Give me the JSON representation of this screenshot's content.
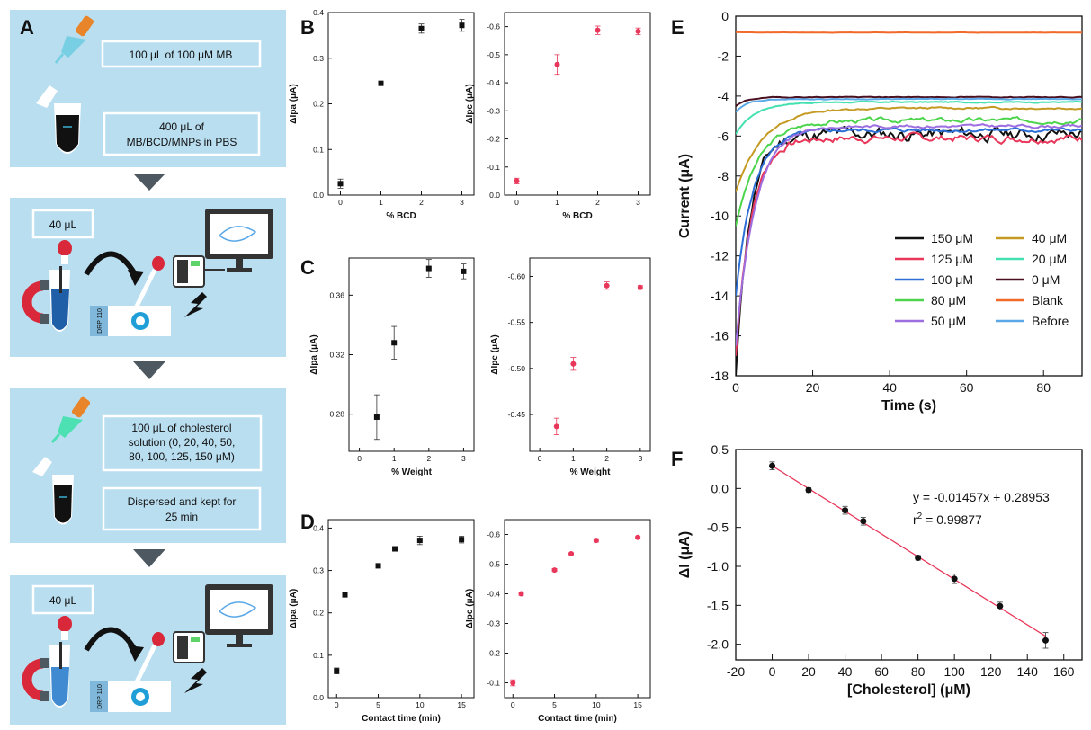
{
  "panel_labels": {
    "A": "A",
    "B": "B",
    "C": "C",
    "D": "D",
    "E": "E",
    "F": "F"
  },
  "schematic": {
    "box1_line1": "100 μL of 100 μM MB",
    "box2_line1": "400 μL of",
    "box2_line2": "MB/BCD/MNPs in PBS",
    "box3": "40 μL",
    "box4_line1": "100 μL of cholesterol",
    "box4_line2": "solution (0, 20, 40, 50,",
    "box4_line3": "80, 100, 125, 150 μM)",
    "box5_line1": "Dispersed and kept for",
    "box5_line2": "25 min",
    "box6": "40 μL",
    "chip_text": "DRP 110",
    "colors": {
      "panel_bg": "#b9def0",
      "arrow": "#4d5860",
      "box_border": "#ffffff",
      "magnet_red": "#d8283a",
      "dropper_orange": "#e8852a"
    }
  },
  "chart_data": [
    {
      "id": "B-left",
      "type": "scatter",
      "xlabel": "% BCD",
      "ylabel": "ΔIpa (μA)",
      "ylim": [
        0,
        0.4
      ],
      "xlim": [
        -0.3,
        3.3
      ],
      "xticks": [
        0,
        1,
        2,
        3
      ],
      "yticks": [
        0.0,
        0.1,
        0.2,
        0.3,
        0.4
      ],
      "x": [
        0,
        1,
        2,
        3
      ],
      "y": [
        0.025,
        0.245,
        0.365,
        0.372
      ],
      "err": [
        0.01,
        0.003,
        0.01,
        0.013
      ],
      "marker": "square",
      "color": "#111111"
    },
    {
      "id": "B-right",
      "type": "scatter",
      "xlabel": "% BCD",
      "ylabel": "ΔIpc (μA)",
      "ylim": [
        0,
        -0.65
      ],
      "xlim": [
        -0.3,
        3.3
      ],
      "xticks": [
        0,
        1,
        2,
        3
      ],
      "yticks": [
        0.0,
        -0.1,
        -0.2,
        -0.3,
        -0.4,
        -0.5,
        -0.6
      ],
      "x": [
        0,
        1,
        2,
        3
      ],
      "y": [
        -0.05,
        -0.465,
        -0.587,
        -0.583
      ],
      "err": [
        0.01,
        0.035,
        0.015,
        0.012
      ],
      "marker": "circle",
      "color": "#e8375a"
    },
    {
      "id": "C-left",
      "type": "scatter",
      "xlabel": "% Weight",
      "ylabel": "ΔIpa (μA)",
      "ylim": [
        0.255,
        0.385
      ],
      "xlim": [
        -0.3,
        3.3
      ],
      "xticks": [
        0,
        1,
        2,
        3
      ],
      "yticks": [
        0.28,
        0.32,
        0.36
      ],
      "x": [
        0.5,
        1,
        2,
        3
      ],
      "y": [
        0.278,
        0.328,
        0.378,
        0.376
      ],
      "err": [
        0.015,
        0.011,
        0.006,
        0.005
      ],
      "marker": "square",
      "color": "#111111"
    },
    {
      "id": "C-right",
      "type": "scatter",
      "xlabel": "% Weight",
      "ylabel": "ΔIpc (μA)",
      "ylim": [
        -0.41,
        -0.62
      ],
      "xlim": [
        -0.3,
        3.3
      ],
      "xticks": [
        0,
        1,
        2,
        3
      ],
      "yticks": [
        -0.45,
        -0.5,
        -0.55,
        -0.6
      ],
      "x": [
        0.5,
        1,
        2,
        3
      ],
      "y": [
        -0.437,
        -0.505,
        -0.59,
        -0.588
      ],
      "err": [
        0.009,
        0.007,
        0.004,
        0.002
      ],
      "marker": "circle",
      "color": "#e8375a"
    },
    {
      "id": "D-left",
      "type": "scatter",
      "xlabel": "Contact time (min)",
      "ylabel": "ΔIpa (μA)",
      "ylim": [
        0,
        0.42
      ],
      "xlim": [
        -1,
        16.5
      ],
      "xticks": [
        0,
        5,
        10,
        15
      ],
      "yticks": [
        0.0,
        0.1,
        0.2,
        0.3,
        0.4
      ],
      "x": [
        0,
        1,
        5,
        7,
        10,
        15
      ],
      "y": [
        0.063,
        0.243,
        0.311,
        0.351,
        0.371,
        0.373
      ],
      "err": [
        0.007,
        0.006,
        0.005,
        0.003,
        0.01,
        0.008
      ],
      "marker": "square",
      "color": "#111111"
    },
    {
      "id": "D-right",
      "type": "scatter",
      "xlabel": "Contact time (min)",
      "ylabel": "ΔIpc (μA)",
      "ylim": [
        -0.05,
        -0.65
      ],
      "xlim": [
        -1,
        16.5
      ],
      "xticks": [
        0,
        5,
        10,
        15
      ],
      "yticks": [
        -0.1,
        -0.2,
        -0.3,
        -0.4,
        -0.5,
        -0.6
      ],
      "x": [
        0,
        1,
        5,
        7,
        10,
        15
      ],
      "y": [
        -0.1,
        -0.4,
        -0.48,
        -0.535,
        -0.58,
        -0.59
      ],
      "err": [
        0.01,
        0.005,
        0.005,
        0.003,
        0.006,
        0.003
      ],
      "marker": "circle",
      "color": "#e8375a"
    },
    {
      "id": "E",
      "type": "line",
      "xlabel": "Time (s)",
      "ylabel": "Current (μA)",
      "xlim": [
        0,
        90
      ],
      "ylim": [
        -18,
        0
      ],
      "xticks": [
        0,
        20,
        40,
        60,
        80
      ],
      "yticks": [
        0,
        -2,
        -4,
        -6,
        -8,
        -10,
        -12,
        -14,
        -16,
        -18
      ],
      "legend_position": "bottom-right",
      "series": [
        {
          "name": "150 μM",
          "color": "#111111",
          "start": -18.0,
          "end": -5.9,
          "tau": 3.5,
          "noise": 0.35,
          "seed": 11
        },
        {
          "name": "125 μM",
          "color": "#e8375a",
          "start": -17.0,
          "end": -6.1,
          "tau": 4.0,
          "noise": 0.2,
          "seed": 7
        },
        {
          "name": "100 μM",
          "color": "#2d6fd6",
          "start": -14.0,
          "end": -5.7,
          "tau": 4.5,
          "noise": 0.1,
          "seed": 5
        },
        {
          "name": "80 μM",
          "color": "#4cd44c",
          "start": -10.5,
          "end": -5.2,
          "tau": 6.0,
          "noise": 0.12,
          "seed": 3
        },
        {
          "name": "50 μM",
          "color": "#9c6ee0",
          "start": -16.5,
          "end": -5.5,
          "tau": 5.0,
          "noise": 0.08,
          "seed": 9
        },
        {
          "name": "40 μM",
          "color": "#c49a22",
          "start": -8.8,
          "end": -4.6,
          "tau": 7.0,
          "noise": 0.05,
          "seed": 13
        },
        {
          "name": "20 μM",
          "color": "#45e0b0",
          "start": -5.9,
          "end": -4.3,
          "tau": 5.0,
          "noise": 0.03,
          "seed": 17
        },
        {
          "name": "0 μM",
          "color": "#4a1020",
          "start": -4.5,
          "end": -4.05,
          "tau": 3.0,
          "noise": 0.02,
          "seed": 19
        },
        {
          "name": "Blank",
          "color": "#f26a2a",
          "start": -0.8,
          "end": -0.82,
          "tau": 3.0,
          "noise": 0.01,
          "seed": 23
        },
        {
          "name": "Before",
          "color": "#5aa8e8",
          "start": -4.8,
          "end": -4.15,
          "tau": 3.0,
          "noise": 0.02,
          "seed": 29
        }
      ]
    },
    {
      "id": "F",
      "type": "scatter",
      "xlabel": "[Cholesterol] (μM)",
      "ylabel": "ΔI (μA)",
      "xlim": [
        -20,
        170
      ],
      "ylim": [
        -2.2,
        0.5
      ],
      "xticks": [
        -20,
        0,
        20,
        40,
        60,
        80,
        100,
        120,
        140,
        160
      ],
      "yticks": [
        0.5,
        0.0,
        -0.5,
        -1.0,
        -1.5,
        -2.0
      ],
      "x": [
        0,
        20,
        40,
        50,
        80,
        100,
        125,
        150
      ],
      "y": [
        0.29,
        -0.02,
        -0.28,
        -0.42,
        -0.89,
        -1.16,
        -1.51,
        -1.95
      ],
      "err": [
        0.05,
        0.03,
        0.05,
        0.05,
        0.03,
        0.06,
        0.05,
        0.1
      ],
      "fit": {
        "slope": -0.01457,
        "intercept": 0.28953,
        "color": "#e8375a"
      },
      "equation": "y = -0.01457x + 0.28953",
      "r2": "r",
      "r2_value": " = 0.99877",
      "r2_sup": "2",
      "marker": "circle",
      "color": "#111111"
    }
  ]
}
